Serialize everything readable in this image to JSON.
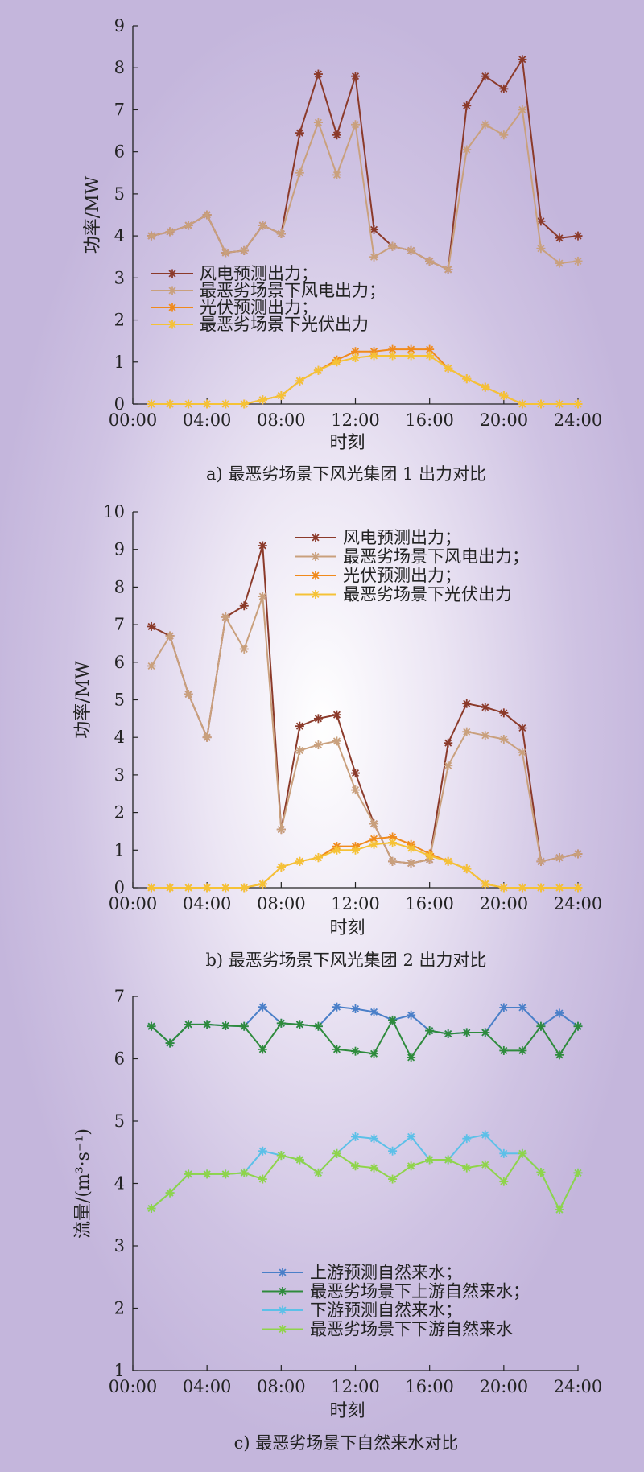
{
  "chart_data": [
    {
      "type": "line",
      "caption": "a) 最恶劣场景下风光集团 1 出力对比",
      "xlabel": "时刻",
      "ylabel": "功率/MW",
      "xlim": [
        0,
        24
      ],
      "ylim": [
        0,
        9
      ],
      "xticks": [
        "00:00",
        "04:00",
        "08:00",
        "12:00",
        "16:00",
        "20:00",
        "24:00"
      ],
      "yticks": [
        "0",
        "1",
        "2",
        "3",
        "4",
        "5",
        "6",
        "7",
        "8",
        "9"
      ],
      "legend": "left",
      "x": [
        1,
        2,
        3,
        4,
        5,
        6,
        7,
        8,
        9,
        10,
        11,
        12,
        13,
        14,
        15,
        16,
        17,
        18,
        19,
        20,
        21,
        22,
        23,
        24
      ],
      "series": [
        {
          "name": "风电预测出力；",
          "color": "#8b3a2a",
          "values": [
            4.0,
            4.1,
            4.25,
            4.5,
            3.6,
            3.65,
            4.25,
            4.05,
            6.45,
            7.85,
            6.4,
            7.8,
            4.15,
            3.75,
            3.65,
            3.4,
            3.2,
            7.1,
            7.8,
            7.5,
            8.2,
            4.35,
            3.95,
            4.0
          ]
        },
        {
          "name": "最恶劣场景下风电出力；",
          "color": "#c9a07d",
          "values": [
            4.0,
            4.1,
            4.25,
            4.5,
            3.6,
            3.65,
            4.25,
            4.05,
            5.5,
            6.7,
            5.45,
            6.65,
            3.5,
            3.75,
            3.65,
            3.4,
            3.2,
            6.05,
            6.65,
            6.4,
            7.0,
            3.7,
            3.35,
            3.4
          ]
        },
        {
          "name": "光伏预测出力；",
          "color": "#f08a1c",
          "values": [
            0,
            0,
            0,
            0,
            0,
            0,
            0.1,
            0.2,
            0.55,
            0.8,
            1.05,
            1.25,
            1.25,
            1.3,
            1.3,
            1.3,
            0.85,
            0.6,
            0.4,
            0.2,
            0,
            0,
            0,
            0
          ]
        },
        {
          "name": "最恶劣场景下光伏出力",
          "color": "#f5c236",
          "values": [
            0,
            0,
            0,
            0,
            0,
            0,
            0.1,
            0.2,
            0.55,
            0.8,
            1.0,
            1.1,
            1.15,
            1.15,
            1.15,
            1.15,
            0.85,
            0.6,
            0.4,
            0.2,
            0,
            0,
            0,
            0
          ]
        }
      ]
    },
    {
      "type": "line",
      "caption": "b) 最恶劣场景下风光集团 2 出力对比",
      "xlabel": "时刻",
      "ylabel": "功率/MW",
      "xlim": [
        0,
        24
      ],
      "ylim": [
        0,
        10
      ],
      "xticks": [
        "00:00",
        "04:00",
        "08:00",
        "12:00",
        "16:00",
        "20:00",
        "24:00"
      ],
      "yticks": [
        "0",
        "1",
        "2",
        "3",
        "4",
        "5",
        "6",
        "7",
        "8",
        "9",
        "10"
      ],
      "legend": "top-right",
      "x": [
        1,
        2,
        3,
        4,
        5,
        6,
        7,
        8,
        9,
        10,
        11,
        12,
        13,
        14,
        15,
        16,
        17,
        18,
        19,
        20,
        21,
        22,
        23,
        24
      ],
      "series": [
        {
          "name": "风电预测出力；",
          "color": "#8b3a2a",
          "values": [
            6.95,
            6.7,
            5.15,
            4.0,
            7.2,
            7.5,
            9.1,
            1.55,
            4.3,
            4.5,
            4.6,
            3.05,
            1.7,
            0.7,
            0.65,
            0.75,
            3.85,
            4.9,
            4.8,
            4.65,
            4.25,
            0.7,
            0.8,
            0.9
          ]
        },
        {
          "name": "最恶劣场景下风电出力；",
          "color": "#c9a07d",
          "values": [
            5.9,
            6.7,
            5.15,
            4.0,
            7.2,
            6.35,
            7.75,
            1.55,
            3.65,
            3.8,
            3.9,
            2.6,
            1.7,
            0.7,
            0.65,
            0.75,
            3.25,
            4.15,
            4.05,
            3.95,
            3.6,
            0.7,
            0.8,
            0.9
          ]
        },
        {
          "name": "光伏预测出力；",
          "color": "#f08a1c",
          "values": [
            0,
            0,
            0,
            0,
            0,
            0,
            0.1,
            0.55,
            0.7,
            0.8,
            1.1,
            1.1,
            1.3,
            1.35,
            1.15,
            0.9,
            0.7,
            0.5,
            0.1,
            0,
            0,
            0,
            0,
            0
          ]
        },
        {
          "name": "最恶劣场景下光伏出力",
          "color": "#f5c236",
          "values": [
            0,
            0,
            0,
            0,
            0,
            0,
            0.1,
            0.55,
            0.7,
            0.8,
            1.0,
            1.0,
            1.15,
            1.2,
            1.05,
            0.85,
            0.7,
            0.5,
            0.1,
            0,
            0,
            0,
            0,
            0
          ]
        }
      ]
    },
    {
      "type": "line",
      "caption": "c) 最恶劣场景下自然来水对比",
      "xlabel": "时刻",
      "ylabel": "流量/(m³·s⁻¹)",
      "xlim": [
        0,
        24
      ],
      "ylim": [
        1,
        7
      ],
      "xticks": [
        "00:00",
        "04:00",
        "08:00",
        "12:00",
        "16:00",
        "20:00",
        "24:00"
      ],
      "yticks": [
        "1",
        "2",
        "3",
        "4",
        "5",
        "6",
        "7"
      ],
      "legend": "bottom-right",
      "x": [
        1,
        2,
        3,
        4,
        5,
        6,
        7,
        8,
        9,
        10,
        11,
        12,
        13,
        14,
        15,
        16,
        17,
        18,
        19,
        20,
        21,
        22,
        23,
        24
      ],
      "series": [
        {
          "name": "上游预测自然来水；",
          "color": "#4a7fc8",
          "values": [
            6.52,
            6.25,
            6.55,
            6.55,
            6.53,
            6.52,
            6.83,
            6.57,
            6.55,
            6.52,
            6.83,
            6.8,
            6.75,
            6.62,
            6.7,
            6.45,
            6.4,
            6.42,
            6.42,
            6.82,
            6.82,
            6.52,
            6.73,
            6.52
          ]
        },
        {
          "name": "最恶劣场景下上游自然来水；",
          "color": "#2e8b3c",
          "values": [
            6.52,
            6.25,
            6.55,
            6.55,
            6.53,
            6.52,
            6.15,
            6.57,
            6.55,
            6.52,
            6.15,
            6.12,
            6.08,
            6.62,
            6.02,
            6.45,
            6.4,
            6.42,
            6.42,
            6.13,
            6.13,
            6.52,
            6.06,
            6.52
          ]
        },
        {
          "name": "下游预测自然来水；",
          "color": "#5cc0e8",
          "values": [
            3.6,
            3.85,
            4.15,
            4.15,
            4.15,
            4.17,
            4.52,
            4.45,
            4.38,
            4.17,
            4.48,
            4.75,
            4.72,
            4.52,
            4.75,
            4.38,
            4.38,
            4.72,
            4.78,
            4.48,
            4.48,
            4.18,
            3.58,
            4.17
          ]
        },
        {
          "name": "最恶劣场景下下游自然来水",
          "color": "#8fd44a",
          "values": [
            3.6,
            3.85,
            4.15,
            4.15,
            4.15,
            4.17,
            4.07,
            4.45,
            4.38,
            4.17,
            4.48,
            4.28,
            4.25,
            4.07,
            4.28,
            4.38,
            4.38,
            4.25,
            4.3,
            4.03,
            4.48,
            4.18,
            3.58,
            4.17
          ]
        }
      ]
    }
  ]
}
